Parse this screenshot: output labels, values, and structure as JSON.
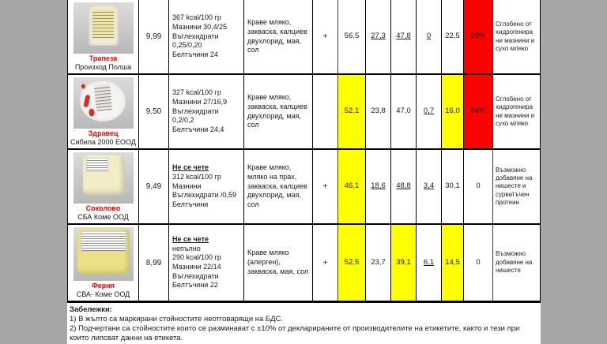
{
  "colors": {
    "highlight_nonconforming": "#ffff00",
    "highlight_assembled": "#ff0000",
    "product_name_red": "#ff0000",
    "divider_red": "#c00000"
  },
  "table": {
    "rows": [
      {
        "name": "Трапеза",
        "company": "Произход Полша",
        "price": "9,99",
        "nutrition_unreadable": "",
        "nutrition": "367 kcal/100 гр\nМазнини 30,4/25\nВъглехидрати\n0,25/0,20\nБелтъчини 24",
        "ingredients": "Краве мляко, закваска, калциев двухлорид, мая, сол",
        "plus": "+",
        "values": [
          {
            "v": "56,5",
            "style": "plain"
          },
          {
            "v": "27,3",
            "style": "underline"
          },
          {
            "v": "47,8",
            "style": "underline"
          },
          {
            "v": "0",
            "style": "underline"
          },
          {
            "v": "22,5",
            "style": "plain"
          },
          {
            "v": "93%",
            "style": "red"
          }
        ],
        "conclusion": "Сглобено от хидрогенира ни мазнини и сухо мляко"
      },
      {
        "name": "Здравец",
        "company": "Сибила 2000 ЕООД",
        "price": "9,50",
        "nutrition_unreadable": "",
        "nutrition": "327 kcal/100 гр\nМазнини 27/16,9\nВъглехидрати\n0,2/0,2\nБелтъчини 24,4",
        "ingredients": "Краве мляко, закваска, калциев двухлорид, мая, сол",
        "plus": "",
        "values": [
          {
            "v": "52,1",
            "style": "yellow"
          },
          {
            "v": "23,8",
            "style": "plain"
          },
          {
            "v": "47,0",
            "style": "plain"
          },
          {
            "v": "0,7",
            "style": "underline"
          },
          {
            "v": "16,0",
            "style": "yellow"
          },
          {
            "v": "94%",
            "style": "red"
          }
        ],
        "conclusion": "Сглобено от хидрогенира ни мазнини и сухо мляко"
      },
      {
        "name": "Соколово",
        "company": "СБА Коме ООД",
        "price": "9,49",
        "nutrition_unreadable": "Не се чете",
        "nutrition": "312 kcal/100 гр\nМазнини\nВъглехидрати /0,59\nБелтъчини",
        "ingredients": "Краве мляко, мляко на прах, закваска, калциев двухлорид, мая, сол",
        "plus": "+",
        "values": [
          {
            "v": "46,1",
            "style": "yellow"
          },
          {
            "v": "18,6",
            "style": "underline"
          },
          {
            "v": "48,8",
            "style": "underline"
          },
          {
            "v": "3,4",
            "style": "underline"
          },
          {
            "v": "30,1",
            "style": "plain"
          },
          {
            "v": "0",
            "style": "plain"
          }
        ],
        "conclusion": "Възможно добавяне на нишесте и сурватъчен протеин"
      },
      {
        "name": "Ферия",
        "company": "СВА- Коме ООД",
        "price": "8,99",
        "nutrition_unreadable": "Не се чете",
        "nutrition": "непълно\n290 kcal/100 гр\nМазнини 22/14\nВъглехидрати\nБелтъчини 22",
        "ingredients": "Краве мляко (алерген), закваска, мая, сол",
        "plus": "+",
        "values": [
          {
            "v": "52,5",
            "style": "yellow"
          },
          {
            "v": "23,7",
            "style": "plain"
          },
          {
            "v": "39,1",
            "style": "yellow"
          },
          {
            "v": "6,1",
            "style": "underline"
          },
          {
            "v": "14,5",
            "style": "yellow"
          },
          {
            "v": "0",
            "style": "plain"
          }
        ],
        "conclusion": "Възможно добавяне на нишесте"
      }
    ]
  },
  "footnotes": {
    "title": "Забележки:",
    "note1": "1) В жълто са маркирани стойностите неотговарящи на БДС.",
    "note2": "2) Подчертани са стойностите които се разминават с ±10% от декларираните от производителите на етикетите, както и тези при които липсват данни на етикета."
  }
}
